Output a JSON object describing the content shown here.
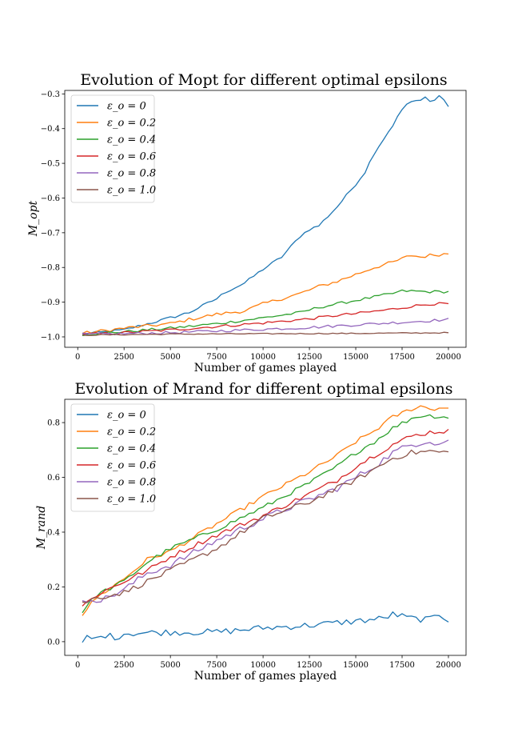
{
  "colors": {
    "eps0": "#1f77b4",
    "eps02": "#ff7f0e",
    "eps04": "#2ca02c",
    "eps06": "#d62728",
    "eps08": "#9467bd",
    "eps10": "#8c564b"
  },
  "chart_data": [
    {
      "type": "line",
      "title": "Evolution of Mopt for different optimal epsilons",
      "xlabel": "Number of games played",
      "ylabel": "M_opt",
      "xlim": [
        -700,
        20950
      ],
      "ylim": [
        -1.03,
        -0.29
      ],
      "xticks": [
        0,
        2500,
        5000,
        7500,
        10000,
        12500,
        15000,
        17500,
        20000
      ],
      "xtick_labels": [
        "0",
        "2500",
        "5000",
        "7500",
        "10000",
        "12500",
        "15000",
        "17500",
        "20000"
      ],
      "yticks": [
        -1.0,
        -0.9,
        -0.8,
        -0.7,
        -0.6,
        -0.5,
        -0.4,
        -0.3
      ],
      "ytick_labels": [
        "−1.0",
        "−0.9",
        "−0.8",
        "−0.7",
        "−0.6",
        "−0.5",
        "−0.4",
        "−0.3"
      ],
      "legend_position": "upper-left",
      "x_range": [
        250,
        20000
      ],
      "x_step": 250,
      "series": [
        {
          "name": "ε_o = 0",
          "color_key": "eps0",
          "anchors": [
            [
              250,
              -0.992
            ],
            [
              2500,
              -0.98
            ],
            [
              5000,
              -0.945
            ],
            [
              6000,
              -0.93
            ],
            [
              7500,
              -0.89
            ],
            [
              8000,
              -0.87
            ],
            [
              9000,
              -0.845
            ],
            [
              10000,
              -0.805
            ],
            [
              11000,
              -0.77
            ],
            [
              12000,
              -0.71
            ],
            [
              12500,
              -0.69
            ],
            [
              13000,
              -0.68
            ],
            [
              14000,
              -0.625
            ],
            [
              15000,
              -0.56
            ],
            [
              15500,
              -0.525
            ],
            [
              16000,
              -0.47
            ],
            [
              16500,
              -0.43
            ],
            [
              17000,
              -0.39
            ],
            [
              17500,
              -0.345
            ],
            [
              17750,
              -0.33
            ],
            [
              18000,
              -0.325
            ],
            [
              18250,
              -0.32
            ],
            [
              18500,
              -0.32
            ],
            [
              18750,
              -0.305
            ],
            [
              19000,
              -0.322
            ],
            [
              19250,
              -0.318
            ],
            [
              19500,
              -0.305
            ],
            [
              19750,
              -0.318
            ],
            [
              20000,
              -0.335
            ]
          ],
          "noise": 0.004
        },
        {
          "name": "ε_o = 0.2",
          "color_key": "eps02",
          "anchors": [
            [
              250,
              -0.99
            ],
            [
              2500,
              -0.975
            ],
            [
              5000,
              -0.962
            ],
            [
              6000,
              -0.95
            ],
            [
              7500,
              -0.935
            ],
            [
              9000,
              -0.925
            ],
            [
              10000,
              -0.905
            ],
            [
              11000,
              -0.89
            ],
            [
              12000,
              -0.875
            ],
            [
              13000,
              -0.855
            ],
            [
              14000,
              -0.84
            ],
            [
              15000,
              -0.82
            ],
            [
              16000,
              -0.8
            ],
            [
              17000,
              -0.785
            ],
            [
              17500,
              -0.775
            ],
            [
              18000,
              -0.765
            ],
            [
              18500,
              -0.77
            ],
            [
              19000,
              -0.765
            ],
            [
              20000,
              -0.76
            ]
          ],
          "noise": 0.005
        },
        {
          "name": "ε_o = 0.4",
          "color_key": "eps04",
          "anchors": [
            [
              250,
              -0.993
            ],
            [
              2500,
              -0.985
            ],
            [
              5000,
              -0.975
            ],
            [
              7500,
              -0.962
            ],
            [
              10000,
              -0.945
            ],
            [
              12000,
              -0.93
            ],
            [
              13000,
              -0.915
            ],
            [
              14000,
              -0.905
            ],
            [
              15000,
              -0.895
            ],
            [
              16000,
              -0.885
            ],
            [
              17000,
              -0.875
            ],
            [
              17500,
              -0.868
            ],
            [
              18000,
              -0.868
            ],
            [
              19000,
              -0.87
            ],
            [
              20000,
              -0.87
            ]
          ],
          "noise": 0.004
        },
        {
          "name": "ε_o = 0.6",
          "color_key": "eps06",
          "anchors": [
            [
              250,
              -0.993
            ],
            [
              2500,
              -0.988
            ],
            [
              5000,
              -0.98
            ],
            [
              7500,
              -0.97
            ],
            [
              10000,
              -0.96
            ],
            [
              12500,
              -0.948
            ],
            [
              14000,
              -0.938
            ],
            [
              15000,
              -0.933
            ],
            [
              17000,
              -0.92
            ],
            [
              18000,
              -0.912
            ],
            [
              19000,
              -0.905
            ],
            [
              20000,
              -0.905
            ]
          ],
          "noise": 0.004
        },
        {
          "name": "ε_o = 0.8",
          "color_key": "eps08",
          "anchors": [
            [
              250,
              -0.993
            ],
            [
              5000,
              -0.988
            ],
            [
              7500,
              -0.983
            ],
            [
              10000,
              -0.978
            ],
            [
              12500,
              -0.973
            ],
            [
              15000,
              -0.965
            ],
            [
              17500,
              -0.958
            ],
            [
              20000,
              -0.95
            ]
          ],
          "noise": 0.004
        },
        {
          "name": "ε_o = 1.0",
          "color_key": "eps10",
          "anchors": [
            [
              250,
              -0.995
            ],
            [
              5000,
              -0.992
            ],
            [
              10000,
              -0.991
            ],
            [
              15000,
              -0.99
            ],
            [
              20000,
              -0.988
            ]
          ],
          "noise": 0.0015
        }
      ]
    },
    {
      "type": "line",
      "title": "Evolution of Mrand for different optimal epsilons",
      "xlabel": "Number of games played",
      "ylabel": "M_rand",
      "xlim": [
        -700,
        20950
      ],
      "ylim": [
        -0.05,
        0.885
      ],
      "xticks": [
        0,
        2500,
        5000,
        7500,
        10000,
        12500,
        15000,
        17500,
        20000
      ],
      "xtick_labels": [
        "0",
        "2500",
        "5000",
        "7500",
        "10000",
        "12500",
        "15000",
        "17500",
        "20000"
      ],
      "yticks": [
        0.0,
        0.2,
        0.4,
        0.6,
        0.8
      ],
      "ytick_labels": [
        "0.0",
        "0.2",
        "0.4",
        "0.6",
        "0.8"
      ],
      "legend_position": "upper-left",
      "x_range": [
        250,
        20000
      ],
      "x_step": 250,
      "series": [
        {
          "name": "ε_o = 0",
          "color_key": "eps0",
          "anchors": [
            [
              250,
              -0.01
            ],
            [
              500,
              0.015
            ],
            [
              1000,
              0.01
            ],
            [
              1500,
              0.025
            ],
            [
              2000,
              0.015
            ],
            [
              2500,
              0.03
            ],
            [
              5000,
              0.035
            ],
            [
              7500,
              0.035
            ],
            [
              10000,
              0.05
            ],
            [
              12500,
              0.06
            ],
            [
              15000,
              0.075
            ],
            [
              16500,
              0.085
            ],
            [
              17000,
              0.1
            ],
            [
              18000,
              0.085
            ],
            [
              19000,
              0.08
            ],
            [
              19500,
              0.1
            ],
            [
              20000,
              0.08
            ]
          ],
          "noise": 0.012
        },
        {
          "name": "ε_o = 0.2",
          "color_key": "eps02",
          "anchors": [
            [
              250,
              0.1
            ],
            [
              1000,
              0.16
            ],
            [
              2500,
              0.23
            ],
            [
              3750,
              0.3
            ],
            [
              5000,
              0.33
            ],
            [
              7500,
              0.43
            ],
            [
              10000,
              0.53
            ],
            [
              12500,
              0.62
            ],
            [
              14000,
              0.68
            ],
            [
              15000,
              0.73
            ],
            [
              16000,
              0.77
            ],
            [
              17000,
              0.82
            ],
            [
              18000,
              0.85
            ],
            [
              18500,
              0.86
            ],
            [
              19000,
              0.85
            ],
            [
              20000,
              0.855
            ]
          ],
          "noise": 0.008
        },
        {
          "name": "ε_o = 0.4",
          "color_key": "eps04",
          "anchors": [
            [
              250,
              0.11
            ],
            [
              1000,
              0.17
            ],
            [
              2500,
              0.22
            ],
            [
              3750,
              0.29
            ],
            [
              5000,
              0.34
            ],
            [
              7500,
              0.41
            ],
            [
              10000,
              0.49
            ],
            [
              12500,
              0.58
            ],
            [
              14000,
              0.64
            ],
            [
              15000,
              0.69
            ],
            [
              16000,
              0.73
            ],
            [
              17000,
              0.78
            ],
            [
              18000,
              0.815
            ],
            [
              18500,
              0.825
            ],
            [
              19000,
              0.825
            ],
            [
              20000,
              0.82
            ]
          ],
          "noise": 0.008
        },
        {
          "name": "ε_o = 0.6",
          "color_key": "eps06",
          "anchors": [
            [
              250,
              0.13
            ],
            [
              1000,
              0.17
            ],
            [
              2500,
              0.22
            ],
            [
              3750,
              0.26
            ],
            [
              5000,
              0.31
            ],
            [
              7500,
              0.39
            ],
            [
              10000,
              0.46
            ],
            [
              12500,
              0.54
            ],
            [
              14000,
              0.59
            ],
            [
              15000,
              0.64
            ],
            [
              16000,
              0.68
            ],
            [
              17000,
              0.72
            ],
            [
              18000,
              0.75
            ],
            [
              19000,
              0.765
            ],
            [
              20000,
              0.77
            ]
          ],
          "noise": 0.009
        },
        {
          "name": "ε_o = 0.8",
          "color_key": "eps08",
          "anchors": [
            [
              250,
              0.14
            ],
            [
              750,
              0.16
            ],
            [
              1250,
              0.15
            ],
            [
              2500,
              0.19
            ],
            [
              3750,
              0.25
            ],
            [
              5000,
              0.28
            ],
            [
              7500,
              0.37
            ],
            [
              10000,
              0.45
            ],
            [
              12500,
              0.52
            ],
            [
              14000,
              0.56
            ],
            [
              15000,
              0.6
            ],
            [
              16000,
              0.64
            ],
            [
              17000,
              0.69
            ],
            [
              18000,
              0.72
            ],
            [
              19000,
              0.735
            ],
            [
              19500,
              0.72
            ],
            [
              20000,
              0.74
            ]
          ],
          "noise": 0.012
        },
        {
          "name": "ε_o = 1.0",
          "color_key": "eps10",
          "anchors": [
            [
              250,
              0.14
            ],
            [
              1000,
              0.16
            ],
            [
              2500,
              0.18
            ],
            [
              3750,
              0.22
            ],
            [
              5000,
              0.26
            ],
            [
              7500,
              0.34
            ],
            [
              10000,
              0.45
            ],
            [
              12500,
              0.51
            ],
            [
              14000,
              0.56
            ],
            [
              15000,
              0.59
            ],
            [
              16000,
              0.63
            ],
            [
              17000,
              0.67
            ],
            [
              18000,
              0.69
            ],
            [
              19000,
              0.695
            ],
            [
              20000,
              0.69
            ]
          ],
          "noise": 0.01
        }
      ]
    }
  ]
}
